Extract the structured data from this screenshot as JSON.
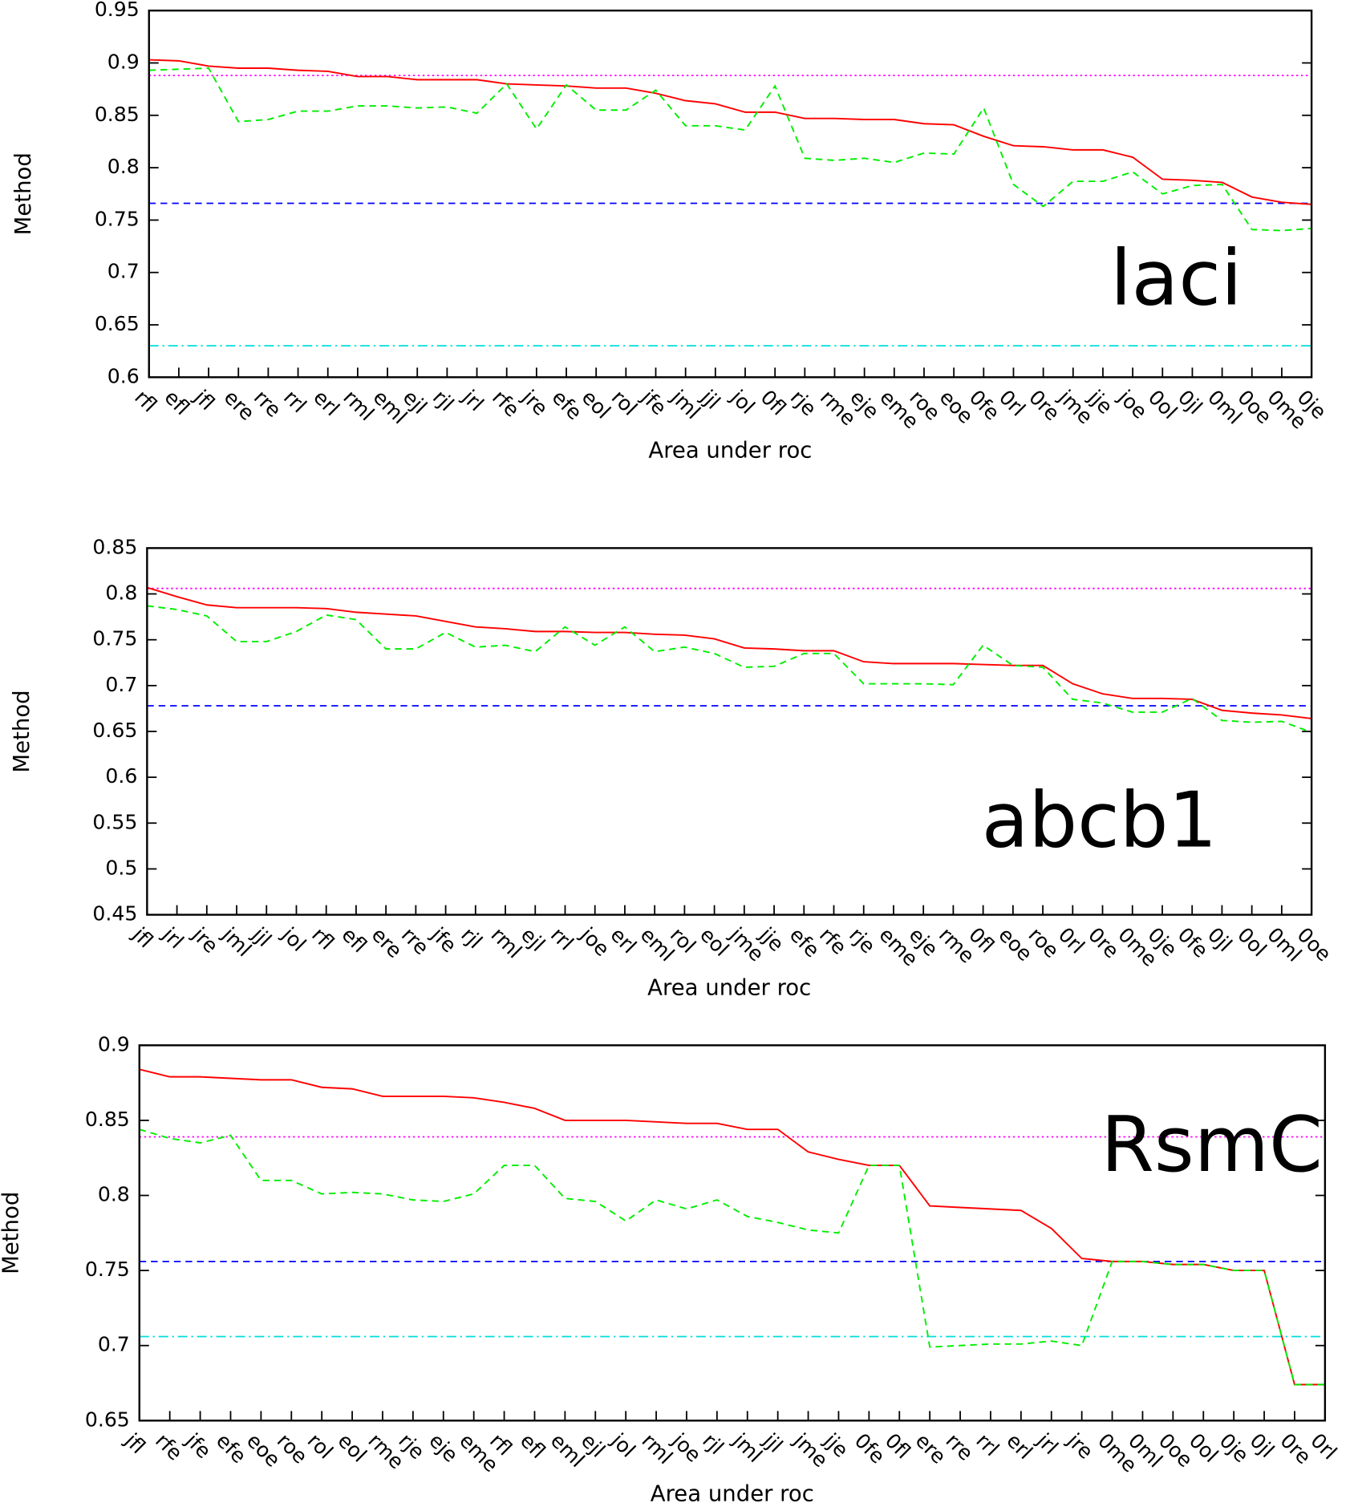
{
  "chart_data": [
    {
      "type": "line",
      "annotation": "laci",
      "xlabel": "Area under roc",
      "ylabel": "Method",
      "categories": [
        "rfl",
        "efl",
        "jfl",
        "ere",
        "rre",
        "rrl",
        "erl",
        "rml",
        "eml",
        "ejl",
        "rjl",
        "jrl",
        "rfe",
        "jre",
        "efe",
        "eol",
        "rol",
        "jfe",
        "jml",
        "jjl",
        "jol",
        "0fl",
        "rje",
        "rme",
        "eje",
        "eme",
        "roe",
        "eoe",
        "0fe",
        "0rl",
        "0re",
        "jme",
        "jje",
        "joe",
        "0ol",
        "0jl",
        "0ml",
        "0oe",
        "0me",
        "0je"
      ],
      "series": [
        {
          "color": "#ff0000",
          "dash": "solid",
          "values": [
            0.903,
            0.902,
            0.897,
            0.895,
            0.895,
            0.893,
            0.892,
            0.887,
            0.887,
            0.884,
            0.884,
            0.884,
            0.88,
            0.879,
            0.878,
            0.876,
            0.876,
            0.871,
            0.864,
            0.861,
            0.853,
            0.853,
            0.847,
            0.847,
            0.846,
            0.846,
            0.842,
            0.841,
            0.83,
            0.821,
            0.82,
            0.817,
            0.817,
            0.81,
            0.789,
            0.788,
            0.786,
            0.772,
            0.767,
            0.765
          ]
        },
        {
          "color": "#00ee00",
          "dash": "dashed",
          "values": [
            0.893,
            0.894,
            0.895,
            0.844,
            0.846,
            0.854,
            0.854,
            0.859,
            0.859,
            0.857,
            0.858,
            0.852,
            0.88,
            0.837,
            0.879,
            0.855,
            0.855,
            0.874,
            0.84,
            0.84,
            0.836,
            0.878,
            0.809,
            0.807,
            0.809,
            0.805,
            0.814,
            0.813,
            0.857,
            0.784,
            0.763,
            0.787,
            0.787,
            0.796,
            0.775,
            0.783,
            0.784,
            0.741,
            0.74,
            0.742
          ]
        }
      ],
      "hlines": [
        {
          "value": 0.888,
          "color": "#ff00ff",
          "dash": "dotted"
        },
        {
          "value": 0.766,
          "color": "#0000ff",
          "dash": "dashed"
        },
        {
          "value": 0.63,
          "color": "#00dddd",
          "dash": "dashdot"
        }
      ],
      "ylim": [
        0.6,
        0.95
      ],
      "yticks": [
        0.6,
        0.65,
        0.7,
        0.75,
        0.8,
        0.85,
        0.9,
        0.95
      ]
    },
    {
      "type": "line",
      "annotation": "abcb1",
      "xlabel": "Area under roc",
      "ylabel": "Method",
      "categories": [
        "jfl",
        "jrl",
        "jre",
        "jml",
        "jjl",
        "jol",
        "rfl",
        "efl",
        "ere",
        "rre",
        "jfe",
        "rjl",
        "rml",
        "ejl",
        "rrl",
        "joe",
        "erl",
        "eml",
        "rol",
        "eol",
        "jme",
        "jje",
        "efe",
        "rfe",
        "rje",
        "eme",
        "eje",
        "rme",
        "0fl",
        "eoe",
        "roe",
        "0rl",
        "0re",
        "0me",
        "0je",
        "0fe",
        "0jl",
        "0ol",
        "0ml",
        "0oe"
      ],
      "series": [
        {
          "color": "#ff0000",
          "dash": "solid",
          "values": [
            0.807,
            0.797,
            0.788,
            0.785,
            0.785,
            0.785,
            0.784,
            0.78,
            0.778,
            0.776,
            0.77,
            0.764,
            0.762,
            0.759,
            0.759,
            0.758,
            0.758,
            0.756,
            0.755,
            0.751,
            0.741,
            0.74,
            0.738,
            0.738,
            0.726,
            0.724,
            0.724,
            0.724,
            0.723,
            0.722,
            0.722,
            0.702,
            0.691,
            0.686,
            0.686,
            0.685,
            0.673,
            0.67,
            0.668,
            0.664
          ]
        },
        {
          "color": "#00ee00",
          "dash": "dashed",
          "values": [
            0.787,
            0.783,
            0.776,
            0.748,
            0.748,
            0.759,
            0.777,
            0.772,
            0.74,
            0.74,
            0.758,
            0.742,
            0.744,
            0.737,
            0.764,
            0.744,
            0.764,
            0.737,
            0.742,
            0.735,
            0.72,
            0.721,
            0.735,
            0.735,
            0.702,
            0.702,
            0.702,
            0.701,
            0.744,
            0.722,
            0.72,
            0.685,
            0.681,
            0.671,
            0.671,
            0.686,
            0.662,
            0.66,
            0.661,
            0.649
          ]
        }
      ],
      "hlines": [
        {
          "value": 0.806,
          "color": "#ff00ff",
          "dash": "dotted"
        },
        {
          "value": 0.678,
          "color": "#0000ff",
          "dash": "dashed"
        },
        {
          "value": 0.45,
          "color": "#00dddd",
          "dash": "dashdot"
        }
      ],
      "ylim": [
        0.45,
        0.85
      ],
      "yticks": [
        0.45,
        0.5,
        0.55,
        0.6,
        0.65,
        0.7,
        0.75,
        0.8,
        0.85
      ]
    },
    {
      "type": "line",
      "annotation": "RsmC",
      "xlabel": "Area under roc",
      "ylabel": "Method",
      "categories": [
        "jfl",
        "rfe",
        "jfe",
        "efe",
        "eoe",
        "roe",
        "rol",
        "eol",
        "rme",
        "rje",
        "eje",
        "eme",
        "rfl",
        "efl",
        "eml",
        "ejl",
        "jol",
        "rml",
        "joe",
        "rjl",
        "jml",
        "jjl",
        "jme",
        "jje",
        "0fe",
        "0fl",
        "ere",
        "rre",
        "rrl",
        "erl",
        "jrl",
        "jre",
        "0me",
        "0ml",
        "0oe",
        "0ol",
        "0je",
        "0jl",
        "0re",
        "0rl"
      ],
      "series": [
        {
          "color": "#ff0000",
          "dash": "solid",
          "values": [
            0.884,
            0.879,
            0.879,
            0.878,
            0.877,
            0.877,
            0.872,
            0.871,
            0.866,
            0.866,
            0.866,
            0.865,
            0.862,
            0.858,
            0.85,
            0.85,
            0.85,
            0.849,
            0.848,
            0.848,
            0.844,
            0.844,
            0.829,
            0.824,
            0.82,
            0.82,
            0.793,
            0.792,
            0.791,
            0.79,
            0.778,
            0.758,
            0.756,
            0.756,
            0.754,
            0.754,
            0.75,
            0.75,
            0.674,
            0.674
          ]
        },
        {
          "color": "#00ee00",
          "dash": "dashed",
          "values": [
            0.844,
            0.838,
            0.835,
            0.84,
            0.81,
            0.81,
            0.801,
            0.802,
            0.801,
            0.797,
            0.796,
            0.801,
            0.82,
            0.82,
            0.798,
            0.796,
            0.783,
            0.797,
            0.791,
            0.797,
            0.786,
            0.782,
            0.777,
            0.775,
            0.82,
            0.82,
            0.699,
            0.7,
            0.701,
            0.701,
            0.703,
            0.7,
            0.756,
            0.756,
            0.754,
            0.754,
            0.75,
            0.75,
            0.674,
            0.674
          ]
        }
      ],
      "hlines": [
        {
          "value": 0.839,
          "color": "#ff00ff",
          "dash": "dotted"
        },
        {
          "value": 0.756,
          "color": "#0000ff",
          "dash": "dashed"
        },
        {
          "value": 0.706,
          "color": "#00dddd",
          "dash": "dashdot"
        }
      ],
      "ylim": [
        0.65,
        0.9
      ],
      "yticks": [
        0.65,
        0.7,
        0.75,
        0.8,
        0.85,
        0.9
      ]
    }
  ]
}
